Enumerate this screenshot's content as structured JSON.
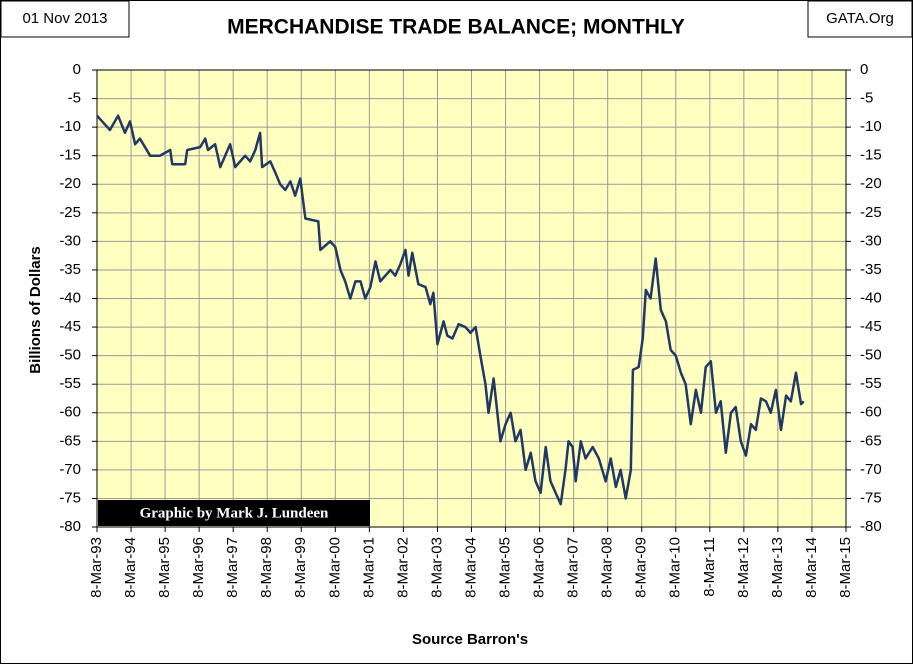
{
  "chart_data": {
    "type": "line",
    "title": "MERCHANDISE TRADE BALANCE; MONTHLY",
    "date_note": "01 Nov 2013",
    "site": "GATA.Org",
    "ylabel": "Billions of Dollars",
    "xlabel": "Source Barron's",
    "credit": "Graphic by Mark J. Lundeen",
    "color": "#1f3864",
    "grid": true,
    "ylim": [
      -80,
      0
    ],
    "yticks": [
      0,
      -5,
      -10,
      -15,
      -20,
      -25,
      -30,
      -35,
      -40,
      -45,
      -50,
      -55,
      -60,
      -65,
      -70,
      -75,
      -80
    ],
    "xlim": [
      1993.18,
      2015.18
    ],
    "xticks": [
      {
        "value": 1993.18,
        "label": "8-Mar-93"
      },
      {
        "value": 1994.18,
        "label": "8-Mar-94"
      },
      {
        "value": 1995.18,
        "label": "8-Mar-95"
      },
      {
        "value": 1996.18,
        "label": "8-Mar-96"
      },
      {
        "value": 1997.18,
        "label": "8-Mar-97"
      },
      {
        "value": 1998.18,
        "label": "8-Mar-98"
      },
      {
        "value": 1999.18,
        "label": "8-Mar-99"
      },
      {
        "value": 2000.18,
        "label": "8-Mar-00"
      },
      {
        "value": 2001.18,
        "label": "8-Mar-01"
      },
      {
        "value": 2002.18,
        "label": "8-Mar-02"
      },
      {
        "value": 2003.18,
        "label": "8-Mar-03"
      },
      {
        "value": 2004.18,
        "label": "8-Mar-04"
      },
      {
        "value": 2005.18,
        "label": "8-Mar-05"
      },
      {
        "value": 2006.18,
        "label": "8-Mar-06"
      },
      {
        "value": 2007.18,
        "label": "8-Mar-07"
      },
      {
        "value": 2008.18,
        "label": "8-Mar-08"
      },
      {
        "value": 2009.18,
        "label": "8-Mar-09"
      },
      {
        "value": 2010.18,
        "label": "8-Mar-10"
      },
      {
        "value": 2011.18,
        "label": "8-Mar-11"
      },
      {
        "value": 2012.18,
        "label": "8-Mar-12"
      },
      {
        "value": 2013.18,
        "label": "8-Mar-13"
      },
      {
        "value": 2014.18,
        "label": "8-Mar-14"
      },
      {
        "value": 2015.18,
        "label": "8-Mar-15"
      }
    ],
    "x": [
      1993.18,
      1993.56,
      1993.8,
      1994.0,
      1994.15,
      1994.3,
      1994.44,
      1994.74,
      1995.03,
      1995.33,
      1995.39,
      1995.77,
      1995.83,
      1996.21,
      1996.36,
      1996.44,
      1996.65,
      1996.8,
      1997.09,
      1997.24,
      1997.53,
      1997.68,
      1997.83,
      1997.97,
      1998.03,
      1998.27,
      1998.42,
      1998.56,
      1998.71,
      1998.86,
      1999.0,
      1999.15,
      1999.3,
      1999.68,
      1999.74,
      2000.03,
      2000.18,
      2000.33,
      2000.47,
      2000.62,
      2000.77,
      2000.92,
      2001.06,
      2001.21,
      2001.36,
      2001.5,
      2001.8,
      2001.94,
      2002.09,
      2002.24,
      2002.33,
      2002.44,
      2002.62,
      2002.83,
      2002.97,
      2003.06,
      2003.18,
      2003.36,
      2003.47,
      2003.62,
      2003.8,
      2004.0,
      2004.15,
      2004.3,
      2004.44,
      2004.59,
      2004.68,
      2004.83,
      2005.03,
      2005.18,
      2005.33,
      2005.47,
      2005.62,
      2005.77,
      2005.92,
      2006.06,
      2006.21,
      2006.36,
      2006.5,
      2006.65,
      2006.8,
      2006.94,
      2007.03,
      2007.15,
      2007.24,
      2007.39,
      2007.53,
      2007.74,
      2007.92,
      2008.12,
      2008.27,
      2008.42,
      2008.56,
      2008.71,
      2008.86,
      2008.92,
      2009.09,
      2009.21,
      2009.3,
      2009.44,
      2009.59,
      2009.74,
      2009.89,
      2010.03,
      2010.18,
      2010.33,
      2010.47,
      2010.62,
      2010.77,
      2010.92,
      2011.06,
      2011.21,
      2011.36,
      2011.5,
      2011.65,
      2011.8,
      2011.94,
      2012.09,
      2012.24,
      2012.39,
      2012.53,
      2012.68,
      2012.83,
      2012.97,
      2013.12,
      2013.27,
      2013.42,
      2013.56,
      2013.71,
      2013.86,
      2013.94
    ],
    "values": [
      -8,
      -10.5,
      -8,
      -11,
      -9,
      -13,
      -12,
      -15,
      -15,
      -14,
      -16.5,
      -16.5,
      -14,
      -13.5,
      -12,
      -14,
      -13,
      -17,
      -13,
      -17,
      -15,
      -16,
      -14,
      -11,
      -17,
      -16,
      -18,
      -20,
      -21,
      -19.5,
      -22,
      -19,
      -26,
      -26.5,
      -31.5,
      -30,
      -31,
      -35,
      -37,
      -40,
      -37,
      -37,
      -40,
      -38,
      -33.5,
      -37,
      -35,
      -36,
      -34,
      -31.5,
      -36,
      -32,
      -37.5,
      -38,
      -41,
      -39,
      -48,
      -44,
      -46.5,
      -47,
      -44.5,
      -45,
      -46,
      -45,
      -50,
      -55,
      -60,
      -54,
      -65,
      -62,
      -60,
      -65,
      -63,
      -70,
      -67,
      -72,
      -74,
      -66,
      -72,
      -74,
      -76,
      -70,
      -65,
      -66,
      -72,
      -65,
      -68,
      -66,
      -68,
      -72,
      -68,
      -73,
      -70,
      -75,
      -70,
      -52.5,
      -52,
      -47,
      -38.5,
      -40,
      -33,
      -42,
      -44,
      -49,
      -50,
      -53,
      -55,
      -62,
      -56,
      -60,
      -52,
      -51,
      -60,
      -58,
      -67,
      -60,
      -59,
      -65,
      -67.5,
      -62,
      -63,
      -57.5,
      -58,
      -60,
      -56,
      -63,
      -57,
      -58,
      -53,
      -58.5,
      -58
    ]
  }
}
